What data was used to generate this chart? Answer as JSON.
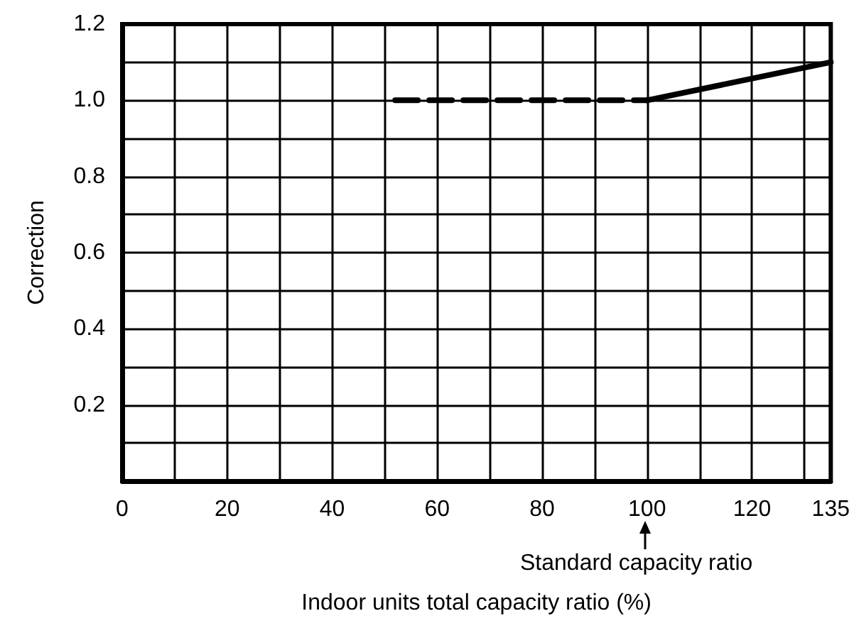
{
  "chart_data": {
    "type": "line",
    "xlabel": "Indoor units total capacity ratio (%)",
    "ylabel": "Correction",
    "xlim": [
      0,
      135
    ],
    "ylim": [
      0,
      1.2
    ],
    "xticks": [
      0,
      {
        "value": 10,
        "label": null
      },
      20,
      {
        "value": 30,
        "label": null
      },
      40,
      {
        "value": 50,
        "label": null
      },
      60,
      {
        "value": 70,
        "label": null
      },
      80,
      {
        "value": 90,
        "label": null
      },
      100,
      {
        "value": 110,
        "label": null
      },
      120,
      {
        "value": 130,
        "label": null
      },
      135
    ],
    "yticks": [
      {
        "value": 0,
        "label": null
      },
      {
        "value": 0.1,
        "label": null
      },
      0.2,
      {
        "value": 0.3,
        "label": null
      },
      0.4,
      {
        "value": 0.5,
        "label": null
      },
      0.6,
      {
        "value": 0.7,
        "label": null
      },
      0.8,
      {
        "value": 0.9,
        "label": null
      },
      {
        "value": 1,
        "label": "1.0"
      },
      {
        "value": 1.1,
        "label": null
      },
      1.2
    ],
    "grid": true,
    "marker": "none",
    "series": [
      {
        "color": "#000000",
        "line_style": "dashed",
        "x": [
          52,
          100
        ],
        "values": [
          1.0,
          1.0
        ]
      },
      {
        "color": "#000000",
        "line_style": "solid",
        "x": [
          100,
          135
        ],
        "values": [
          1.0,
          1.1
        ]
      }
    ],
    "annotations": [
      "Standard capacity ratio"
    ]
  }
}
